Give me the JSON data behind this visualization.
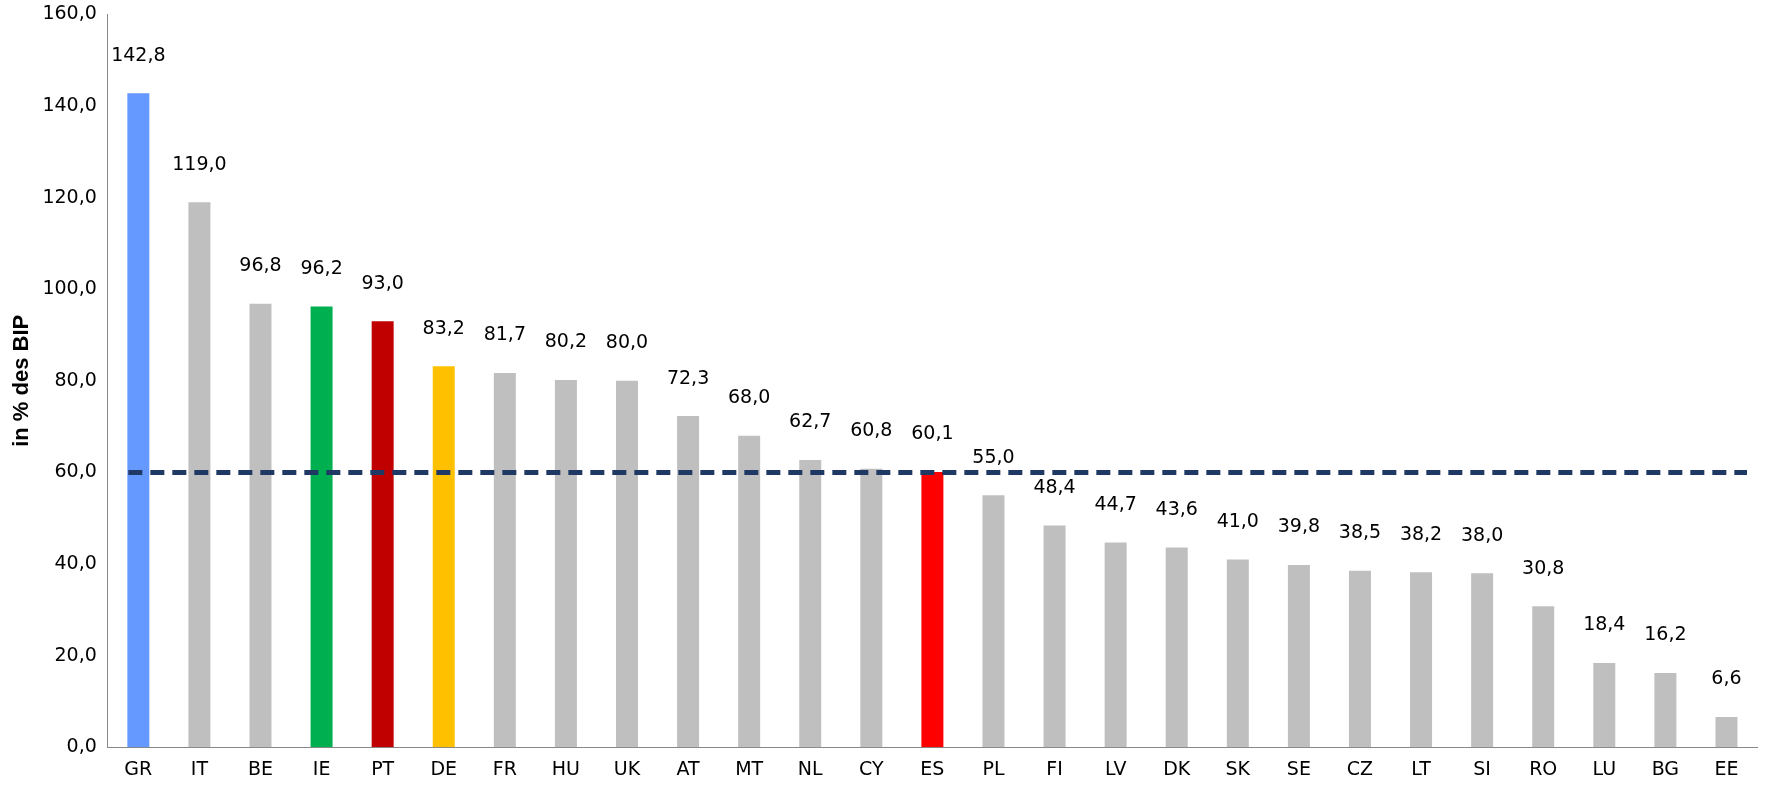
{
  "chart_data": {
    "type": "bar",
    "ylabel": "in % des BIP",
    "categories": [
      "GR",
      "IT",
      "BE",
      "IE",
      "PT",
      "DE",
      "FR",
      "HU",
      "UK",
      "AT",
      "MT",
      "NL",
      "CY",
      "ES",
      "PL",
      "FI",
      "LV",
      "DK",
      "SK",
      "SE",
      "CZ",
      "LT",
      "SI",
      "RO",
      "LU",
      "BG",
      "EE"
    ],
    "values": [
      142.8,
      119.0,
      96.8,
      96.2,
      93.0,
      83.2,
      81.7,
      80.2,
      80.0,
      72.3,
      68.0,
      62.7,
      60.8,
      60.1,
      55.0,
      48.4,
      44.7,
      43.6,
      41.0,
      39.8,
      38.5,
      38.2,
      38.0,
      30.8,
      18.4,
      16.2,
      6.6
    ],
    "value_labels": [
      "142,8",
      "119,0",
      "96,8",
      "96,2",
      "93,0",
      "83,2",
      "81,7",
      "80,2",
      "80,0",
      "72,3",
      "68,0",
      "62,7",
      "60,8",
      "60,1",
      "55,0",
      "48,4",
      "44,7",
      "43,6",
      "41,0",
      "39,8",
      "38,5",
      "38,2",
      "38,0",
      "30,8",
      "18,4",
      "16,2",
      "6,6"
    ],
    "colors": [
      "#6699ff",
      "#bfbfbf",
      "#bfbfbf",
      "#00b050",
      "#c00000",
      "#ffc000",
      "#bfbfbf",
      "#bfbfbf",
      "#bfbfbf",
      "#bfbfbf",
      "#bfbfbf",
      "#bfbfbf",
      "#bfbfbf",
      "#ff0000",
      "#bfbfbf",
      "#bfbfbf",
      "#bfbfbf",
      "#bfbfbf",
      "#bfbfbf",
      "#bfbfbf",
      "#bfbfbf",
      "#bfbfbf",
      "#bfbfbf",
      "#bfbfbf",
      "#bfbfbf",
      "#bfbfbf",
      "#bfbfbf"
    ],
    "ylim": [
      0,
      160
    ],
    "yticks": [
      {
        "value": 0,
        "label": "0,0"
      },
      {
        "value": 20,
        "label": "20,0"
      },
      {
        "value": 40,
        "label": "40,0"
      },
      {
        "value": 60,
        "label": "60,0"
      },
      {
        "value": 80,
        "label": "80,0"
      },
      {
        "value": 100,
        "label": "100,0"
      },
      {
        "value": 120,
        "label": "120,0"
      },
      {
        "value": 140,
        "label": "140,0"
      },
      {
        "value": 160,
        "label": "160,0"
      }
    ],
    "ref_lines": [
      {
        "axis": "y",
        "value": 60,
        "color": "#1f3864",
        "line_style": "dashed"
      }
    ],
    "grid": false,
    "legend": false
  }
}
